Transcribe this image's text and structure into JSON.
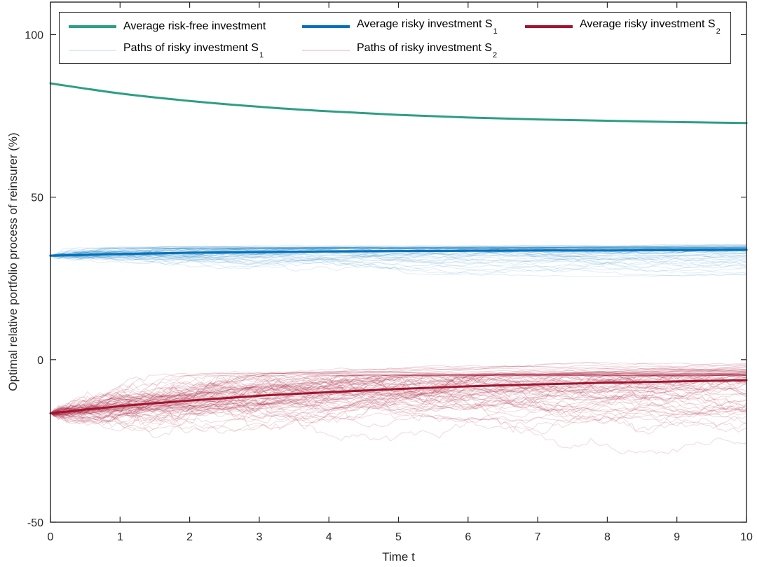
{
  "chart_data": {
    "type": "line",
    "title": "",
    "xlabel": "Time t",
    "ylabel": "Optimal relative portfolio process of reinsurer (%)",
    "xlim": [
      0,
      10
    ],
    "ylim": [
      -50,
      110
    ],
    "xticks": [
      0,
      1,
      2,
      3,
      4,
      5,
      6,
      7,
      8,
      9,
      10
    ],
    "yticks": [
      -50,
      0,
      50,
      100
    ],
    "grid": false,
    "legend_position": "north inside plot, 3 columns, 2 rows",
    "x": [
      0,
      1,
      2,
      3,
      4,
      5,
      6,
      7,
      8,
      9,
      10
    ],
    "series": [
      {
        "name": "Average risk-free investment",
        "color": "#2E9E84",
        "linewidth": 3,
        "values": [
          85.0,
          81.9,
          79.6,
          77.8,
          76.4,
          75.3,
          74.5,
          73.9,
          73.5,
          73.1,
          72.8
        ]
      },
      {
        "name": "Average risky investment S_1",
        "color": "#0072BD",
        "linewidth": 3.2,
        "values": [
          32.0,
          32.5,
          32.9,
          33.1,
          33.3,
          33.4,
          33.5,
          33.6,
          33.6,
          33.7,
          33.8
        ]
      },
      {
        "name": "Average risky investment S_2",
        "color": "#A2142F",
        "linewidth": 3,
        "values": [
          -16.5,
          -14.3,
          -12.6,
          -11.1,
          -10.0,
          -9.0,
          -8.2,
          -7.6,
          -7.1,
          -6.7,
          -6.3
        ]
      }
    ],
    "path_ensembles": [
      {
        "name": "Paths of risky investment S_1",
        "base_series": 1,
        "count": 60,
        "color": "#0072BD",
        "opacity": 0.13,
        "sigma_min": 0.35,
        "sigma_max": 1.7,
        "ceiling": 34.2,
        "ceiling_compress": 0.15,
        "floor": 26.5,
        "floor_compress": 0.35,
        "seed": 11
      },
      {
        "name": "Paths of risky investment S_2",
        "base_series": 2,
        "count": 90,
        "color": "#A2142F",
        "opacity": 0.16,
        "sigma_min": 1.2,
        "sigma_max": 4.6,
        "ceiling": -5.0,
        "ceiling_compress": 0.15,
        "floor": -40.0,
        "floor_compress": 0.3,
        "seed": 77
      }
    ]
  },
  "legend": {
    "rows": [
      {
        "items": [
          {
            "label": "Average risk-free investment",
            "sub": "",
            "color": "#2E9E84",
            "weight": "thick"
          },
          {
            "label": "Average risky investment S",
            "sub": "1",
            "color": "#0072BD",
            "weight": "thick"
          },
          {
            "label": "Average risky investment S",
            "sub": "2",
            "color": "#A2142F",
            "weight": "thick"
          }
        ]
      },
      {
        "items": [
          {
            "label": "Paths of risky investment S",
            "sub": "1",
            "color": "#DEEDF6",
            "weight": "thin"
          },
          {
            "label": "Paths of risky investment S",
            "sub": "2",
            "color": "#F0D9DE",
            "weight": "thin"
          }
        ]
      }
    ]
  },
  "axes": {
    "tick_color": "#262626",
    "axis_color": "#262626",
    "x_tick_labels": [
      "0",
      "1",
      "2",
      "3",
      "4",
      "5",
      "6",
      "7",
      "8",
      "9",
      "10"
    ],
    "y_tick_labels": [
      "-50",
      "0",
      "50",
      "100"
    ]
  }
}
